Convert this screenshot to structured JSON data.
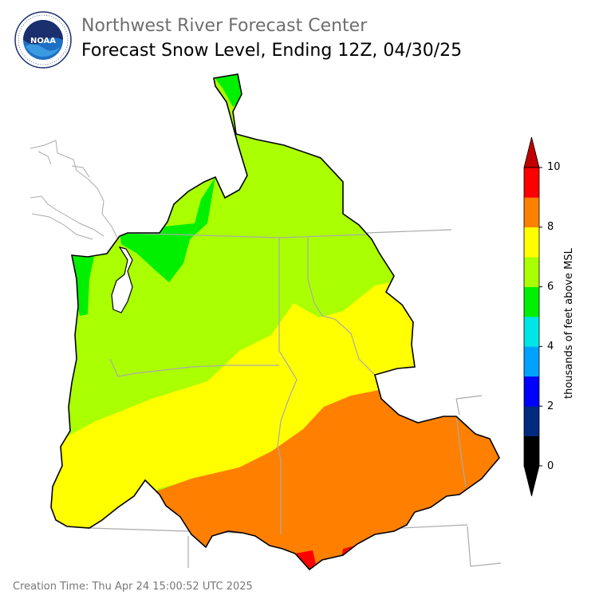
{
  "header": {
    "org_name": "Northwest River Forecast Center",
    "product_title": "Forecast Snow Level, Ending 12Z, 04/30/25"
  },
  "logo": {
    "center_text": "NOAA",
    "ring_text": "NATIONAL OCEANIC AND ATMOSPHERIC ADMINISTRATION · U.S. DEPARTMENT OF COMMERCE"
  },
  "colorbar": {
    "label": "thousands of feet above MSL",
    "ticks": [
      "0",
      "2",
      "4",
      "6",
      "8",
      "10"
    ],
    "bins": [
      {
        "range": "below 0",
        "color": "#000000"
      },
      {
        "range": "0-1",
        "color": "#000000"
      },
      {
        "range": "1-2",
        "color": "#002a80"
      },
      {
        "range": "2-3",
        "color": "#0000ff"
      },
      {
        "range": "3-4",
        "color": "#00a2ff"
      },
      {
        "range": "4-5",
        "color": "#00e5e5"
      },
      {
        "range": "5-6",
        "color": "#00f000"
      },
      {
        "range": "6-7",
        "color": "#aaff00"
      },
      {
        "range": "7-8",
        "color": "#ffff00"
      },
      {
        "range": "8-9",
        "color": "#ff8000"
      },
      {
        "range": "9-10",
        "color": "#ff0000"
      },
      {
        "range": "above 10",
        "color": "#c00000"
      }
    ]
  },
  "map_legend_colors": {
    "land_outline": "#000000",
    "state_borders": "#aaaaaa",
    "coastline_outside": "#aaaaaa"
  },
  "footer": {
    "creation_time": "Creation Time: Thu Apr 24 15:00:52 UTC 2025"
  }
}
